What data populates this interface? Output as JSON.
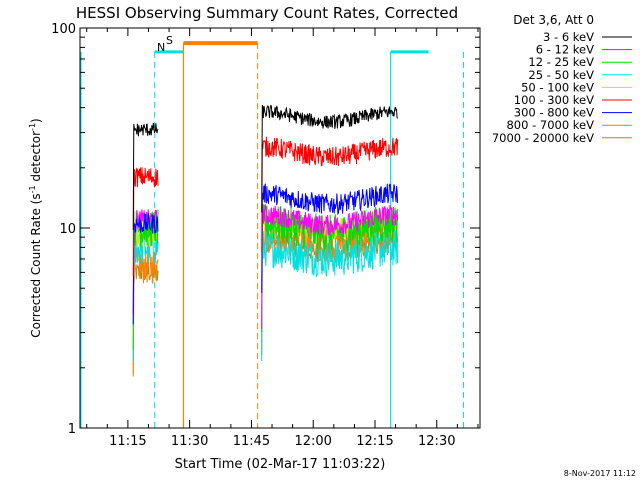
{
  "chart_data": {
    "type": "line",
    "title": "HESSI Observing Summary Count Rates, Corrected",
    "xlabel": "Start Time (02-Mar-17 11:03:22)",
    "ylabel": "Corrected Count Rate (s⁻¹ detector⁻¹)",
    "ylabel_main": "Corrected Count Rate (s",
    "ylabel_mid": " detector",
    "ylabel_end": ")",
    "ylabel_sup": "-1",
    "yscale": "log",
    "xlim_min": [
      3.37,
      100.5
    ],
    "ylim": [
      1,
      100
    ],
    "x_ticks": [
      {
        "min": 15,
        "label": "11:15"
      },
      {
        "min": 30,
        "label": "11:30"
      },
      {
        "min": 45,
        "label": "11:45"
      },
      {
        "min": 60,
        "label": "12:00"
      },
      {
        "min": 75,
        "label": "12:15"
      },
      {
        "min": 90,
        "label": "12:30"
      }
    ],
    "y_ticks": [
      {
        "value": 1,
        "label": "1"
      },
      {
        "value": 10,
        "label": "10"
      },
      {
        "value": 100,
        "label": "100"
      }
    ],
    "legend_title": "Det 3,6, Att 0",
    "legend_position": "right",
    "series": [
      {
        "name": "3 - 6 keV",
        "color": "#000000",
        "seg1": 31,
        "seg2": 36
      },
      {
        "name": "6 - 12 keV",
        "color": "#ff00ff",
        "seg1": 11,
        "seg2": 11
      },
      {
        "name": "12 - 25 keV",
        "color": "#00dd00",
        "seg1": 10,
        "seg2": 10
      },
      {
        "name": "25 - 50 keV",
        "color": "#00e0e0",
        "seg1": 8,
        "seg2": 7.5
      },
      {
        "name": "50 - 100 keV",
        "color": "#dddd00",
        "seg1": 9,
        "seg2": 10.5
      },
      {
        "name": "100 - 300 keV",
        "color": "#ff0000",
        "seg1": 18,
        "seg2": 24
      },
      {
        "name": "300 - 800 keV",
        "color": "#0000ff",
        "seg1": 10.5,
        "seg2": 14
      },
      {
        "name": "800 - 7000 keV",
        "color": "#ff7f00",
        "seg1": 6.5,
        "seg2": 9
      },
      {
        "name": "7000 - 20000 keV",
        "color": "#b8860b",
        "seg1": 6,
        "seg2": 8
      }
    ],
    "data_intervals": [
      [
        16.3,
        22.3
      ],
      [
        47.5,
        80.5
      ]
    ],
    "markers": {
      "N": {
        "label": "N",
        "color": "#00e0e0"
      },
      "S": {
        "label": "S",
        "color": "#ff7f00"
      }
    },
    "night_solid": [
      [
        21.5,
        28.5
      ],
      [
        78.8,
        88
      ]
    ],
    "night_dashed": [
      [
        21.5
      ],
      [
        96.5
      ]
    ],
    "saa_solid": [
      28.5
    ],
    "saa_dashed": [
      46.5
    ]
  },
  "timestamp": "8-Nov-2017 11:12"
}
